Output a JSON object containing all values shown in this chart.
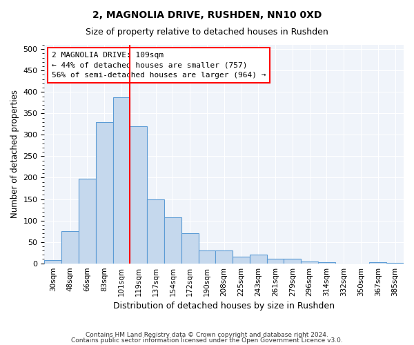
{
  "title1": "2, MAGNOLIA DRIVE, RUSHDEN, NN10 0XD",
  "title2": "Size of property relative to detached houses in Rushden",
  "xlabel": "Distribution of detached houses by size in Rushden",
  "ylabel": "Number of detached properties",
  "bar_labels": [
    "30sqm",
    "48sqm",
    "66sqm",
    "83sqm",
    "101sqm",
    "119sqm",
    "137sqm",
    "154sqm",
    "172sqm",
    "190sqm",
    "208sqm",
    "225sqm",
    "243sqm",
    "261sqm",
    "279sqm",
    "296sqm",
    "314sqm",
    "332sqm",
    "350sqm",
    "367sqm",
    "385sqm"
  ],
  "bar_values": [
    8,
    75,
    197,
    330,
    387,
    320,
    150,
    108,
    70,
    30,
    30,
    15,
    20,
    10,
    10,
    5,
    2,
    0,
    0,
    2,
    1
  ],
  "bar_color": "#c5d8ed",
  "bar_edge_color": "#5b9bd5",
  "vline_x": 4,
  "vline_color": "red",
  "annotation_text": "2 MAGNOLIA DRIVE: 109sqm\n← 44% of detached houses are smaller (757)\n56% of semi-detached houses are larger (964) →",
  "annotation_box_color": "white",
  "annotation_box_edge": "red",
  "ylim": [
    0,
    510
  ],
  "yticks": [
    0,
    50,
    100,
    150,
    200,
    250,
    300,
    350,
    400,
    450,
    500
  ],
  "footer1": "Contains HM Land Registry data © Crown copyright and database right 2024.",
  "footer2": "Contains public sector information licensed under the Open Government Licence v3.0.",
  "bg_color": "#f0f4fa"
}
